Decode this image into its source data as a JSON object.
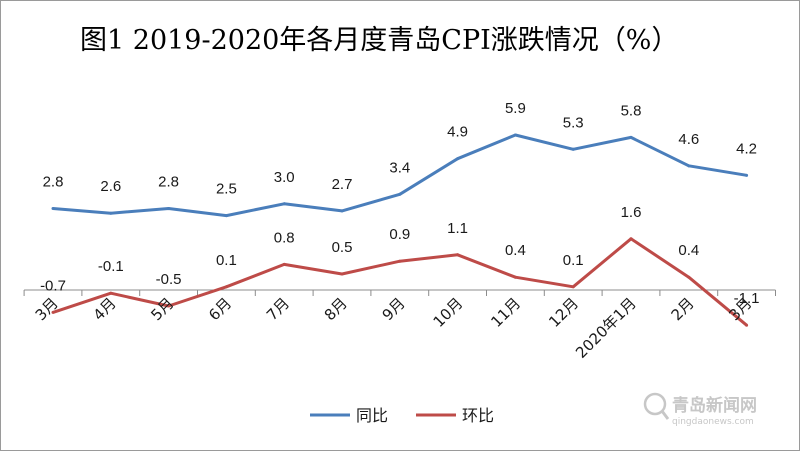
{
  "title": "图1    2019-2020年各月度青岛CPI涨跌情况（%）",
  "chart_data": {
    "type": "line",
    "categories": [
      "3月",
      "4月",
      "5月",
      "6月",
      "7月",
      "8月",
      "9月",
      "10月",
      "11月",
      "12月",
      "2020年1月",
      "2月",
      "3月"
    ],
    "series": [
      {
        "name": "同比",
        "color": "#4a7ebb",
        "values": [
          2.8,
          2.6,
          2.8,
          2.5,
          3.0,
          2.7,
          3.4,
          4.9,
          5.9,
          5.3,
          5.8,
          4.6,
          4.2
        ],
        "labels": [
          "2.8",
          "2.6",
          "2.8",
          "2.5",
          "3.0",
          "2.7",
          "3.4",
          "4.9",
          "5.9",
          "5.3",
          "5.8",
          "4.6",
          "4.2"
        ]
      },
      {
        "name": "环比",
        "color": "#be4b48",
        "values": [
          -0.7,
          -0.1,
          -0.5,
          0.1,
          0.8,
          0.5,
          0.9,
          1.1,
          0.4,
          0.1,
          1.6,
          0.4,
          -1.1
        ],
        "labels": [
          "-0.7",
          "-0.1",
          "-0.5",
          "0.1",
          "0.8",
          "0.5",
          "0.9",
          "1.1",
          "0.4",
          "0.1",
          "1.6",
          "0.4",
          "-1.1"
        ]
      }
    ],
    "grid": false,
    "legend_position": "bottom"
  },
  "watermark": {
    "name_cn": "青岛新闻网",
    "name_en": "qingdaonews.com",
    "color": "#c7c7c7"
  }
}
